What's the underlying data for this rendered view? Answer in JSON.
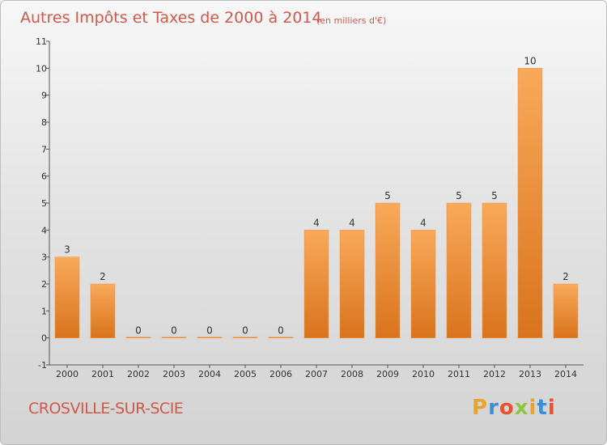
{
  "chart_data": {
    "type": "bar",
    "title": "Autres Impôts et Taxes de 2000 à 2014",
    "unit": "(en milliers d'€)",
    "categories": [
      "2000",
      "2001",
      "2002",
      "2003",
      "2004",
      "2005",
      "2006",
      "2007",
      "2008",
      "2009",
      "2010",
      "2011",
      "2012",
      "2013",
      "2014"
    ],
    "values": [
      3,
      2,
      0,
      0,
      0,
      0,
      0,
      4,
      4,
      5,
      4,
      5,
      5,
      10,
      2
    ],
    "ylim": [
      -1,
      11
    ],
    "yticks": [
      "-1",
      "0",
      "1",
      "2",
      "3",
      "4",
      "5",
      "6",
      "7",
      "8",
      "9",
      "10",
      "11"
    ],
    "xlabel": "",
    "ylabel": "",
    "bar_color": "#f0903c",
    "grid": false
  },
  "footer": {
    "town": "CROSVILLE-SUR-SCIE",
    "logo_letters": [
      "P",
      "r",
      "o",
      "x",
      "i",
      "t",
      "i"
    ],
    "logo_colors": [
      "#e8a32c",
      "#3a8fd6",
      "#e8532c",
      "#8dc63f",
      "#e8a32c",
      "#3a8fd6",
      "#e8532c"
    ]
  }
}
